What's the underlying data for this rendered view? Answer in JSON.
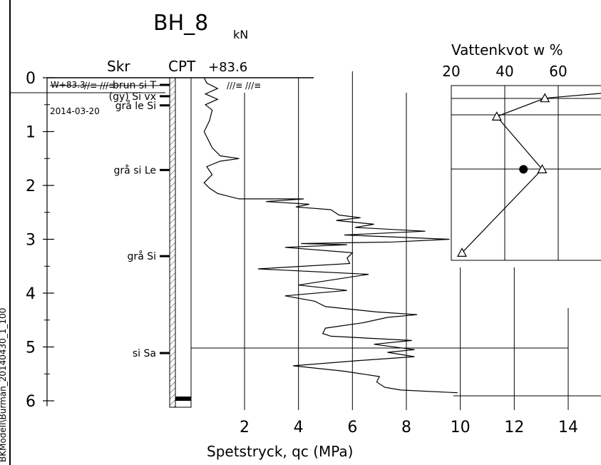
{
  "side_text": "BKModell\\Burman_20140430_1_100",
  "title": "BH_8",
  "unit": "kN",
  "headers": {
    "skr": "Skr",
    "cpt": "CPT",
    "level": "+83.6"
  },
  "water": {
    "level": "W+83.3",
    "date": "2014-03-20"
  },
  "layers": [
    {
      "label": "brun si T",
      "depth": 0.12
    },
    {
      "label": "(gy) Si vx",
      "depth": 0.33
    },
    {
      "label": "grå le Si",
      "depth": 0.5
    },
    {
      "label": "grå si Le",
      "depth": 1.7
    },
    {
      "label": "grå Si",
      "depth": 3.3
    },
    {
      "label": "si Sa",
      "depth": 5.1
    }
  ],
  "chart_data": [
    {
      "type": "line",
      "xlabel": "Spetstryck, qc (MPa)",
      "ylabel": "",
      "xticks": [
        "2",
        "4",
        "6",
        "8",
        "10",
        "12",
        "14"
      ],
      "yticks": [
        "0",
        "1",
        "2",
        "3",
        "4",
        "5",
        "6"
      ],
      "xlim": [
        0,
        14
      ],
      "ylim": [
        0,
        6
      ],
      "series": [
        {
          "points": [
            [
              0.5,
              0.0
            ],
            [
              0.6,
              0.1
            ],
            [
              1.0,
              0.2
            ],
            [
              0.55,
              0.3
            ],
            [
              1.0,
              0.4
            ],
            [
              0.55,
              0.5
            ],
            [
              0.8,
              0.6
            ],
            [
              0.7,
              0.8
            ],
            [
              0.5,
              1.0
            ],
            [
              0.8,
              1.3
            ],
            [
              1.1,
              1.45
            ],
            [
              1.8,
              1.5
            ],
            [
              1.1,
              1.55
            ],
            [
              0.6,
              1.65
            ],
            [
              0.8,
              1.8
            ],
            [
              0.5,
              1.95
            ],
            [
              0.7,
              2.05
            ],
            [
              1.0,
              2.15
            ],
            [
              1.8,
              2.25
            ],
            [
              4.2,
              2.25
            ],
            [
              2.8,
              2.3
            ],
            [
              4.4,
              2.35
            ],
            [
              3.9,
              2.4
            ],
            [
              5.2,
              2.45
            ],
            [
              5.5,
              2.55
            ],
            [
              6.3,
              2.6
            ],
            [
              5.4,
              2.65
            ],
            [
              6.8,
              2.72
            ],
            [
              6.1,
              2.78
            ],
            [
              8.7,
              2.85
            ],
            [
              5.7,
              2.92
            ],
            [
              9.6,
              3.0
            ],
            [
              7.5,
              3.05
            ],
            [
              4.1,
              3.08
            ],
            [
              5.8,
              3.1
            ],
            [
              3.5,
              3.15
            ],
            [
              6.0,
              3.25
            ],
            [
              5.8,
              3.35
            ],
            [
              5.9,
              3.45
            ],
            [
              2.5,
              3.55
            ],
            [
              6.6,
              3.65
            ],
            [
              4.0,
              3.85
            ],
            [
              5.8,
              3.95
            ],
            [
              3.5,
              4.05
            ],
            [
              4.6,
              4.15
            ],
            [
              5.0,
              4.25
            ],
            [
              6.9,
              4.35
            ],
            [
              8.4,
              4.4
            ],
            [
              7.3,
              4.45
            ],
            [
              6.4,
              4.55
            ],
            [
              5.0,
              4.65
            ],
            [
              4.9,
              4.75
            ],
            [
              5.2,
              4.8
            ],
            [
              8.2,
              4.88
            ],
            [
              6.8,
              4.95
            ],
            [
              8.3,
              5.05
            ],
            [
              7.3,
              5.1
            ],
            [
              8.3,
              5.18
            ],
            [
              6.3,
              5.25
            ],
            [
              3.8,
              5.35
            ],
            [
              5.7,
              5.45
            ],
            [
              7.0,
              5.55
            ],
            [
              6.9,
              5.65
            ],
            [
              7.2,
              5.75
            ],
            [
              7.8,
              5.8
            ],
            [
              9.9,
              5.85
            ]
          ]
        }
      ]
    },
    {
      "type": "line",
      "title": "Vattenkvot  w %",
      "xticks": [
        "20",
        "40",
        "60"
      ],
      "xlim": [
        20,
        60
      ],
      "series": [
        {
          "name": "",
          "marker": "triangle",
          "points": [
            [
              85,
              0.25
            ],
            [
              55,
              0.38
            ],
            [
              37,
              0.72
            ],
            [
              54,
              1.7
            ],
            [
              24,
              3.25
            ]
          ]
        },
        {
          "name": "",
          "marker": "filled-circle",
          "points": [
            [
              47,
              1.7
            ]
          ]
        }
      ]
    }
  ]
}
